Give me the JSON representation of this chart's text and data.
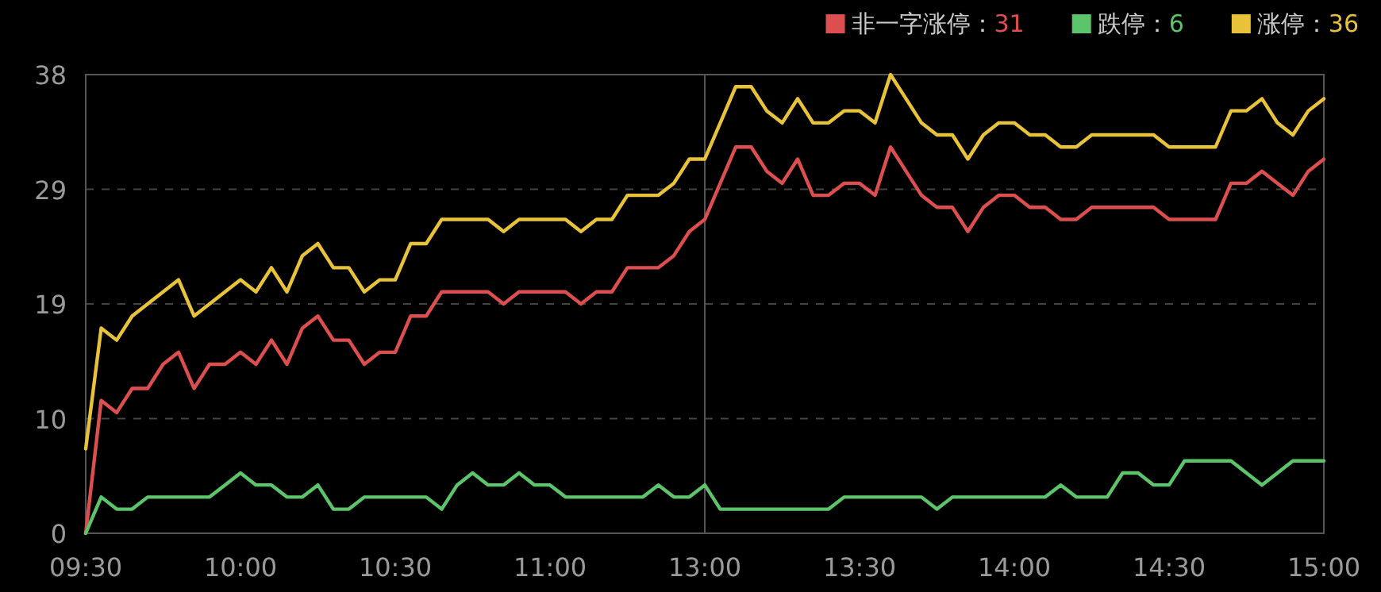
{
  "chart_data": {
    "type": "line",
    "categories": [
      "09:30",
      null,
      null,
      null,
      null,
      null,
      null,
      null,
      null,
      null,
      "10:00",
      null,
      null,
      null,
      null,
      null,
      null,
      null,
      null,
      null,
      "10:30",
      null,
      null,
      null,
      null,
      null,
      null,
      null,
      null,
      null,
      "11:00",
      null,
      null,
      null,
      null,
      null,
      null,
      null,
      null,
      null,
      "13:00",
      null,
      null,
      null,
      null,
      null,
      null,
      null,
      null,
      null,
      "13:30",
      null,
      null,
      null,
      null,
      null,
      null,
      null,
      null,
      null,
      "14:00",
      null,
      null,
      null,
      null,
      null,
      null,
      null,
      null,
      null,
      "14:30",
      null,
      null,
      null,
      null,
      null,
      null,
      null,
      null,
      null,
      "15:00"
    ],
    "series": [
      {
        "name": "非一字涨停：31",
        "color": "#dd4f4f",
        "values": [
          0,
          11,
          10,
          12,
          12,
          14,
          15,
          12,
          14,
          14,
          15,
          14,
          16,
          14,
          17,
          18,
          16,
          16,
          14,
          15,
          15,
          18,
          18,
          20,
          20,
          20,
          20,
          19,
          20,
          20,
          20,
          20,
          19,
          20,
          20,
          22,
          22,
          22,
          23,
          25,
          26,
          29,
          32,
          32,
          30,
          29,
          31,
          28,
          28,
          29,
          29,
          28,
          32,
          30,
          28,
          27,
          27,
          25,
          27,
          28,
          28,
          27,
          27,
          26,
          26,
          27,
          27,
          27,
          27,
          27,
          26,
          26,
          26,
          26,
          29,
          29,
          30,
          29,
          28,
          30,
          31
        ]
      },
      {
        "name": "跌停：6",
        "color": "#5cc46a",
        "values": [
          0,
          3,
          2,
          2,
          3,
          3,
          3,
          3,
          3,
          4,
          5,
          4,
          4,
          3,
          3,
          4,
          2,
          2,
          3,
          3,
          3,
          3,
          3,
          2,
          4,
          5,
          4,
          4,
          5,
          4,
          4,
          3,
          3,
          3,
          3,
          3,
          3,
          4,
          3,
          3,
          4,
          2,
          2,
          2,
          2,
          2,
          2,
          2,
          2,
          3,
          3,
          3,
          3,
          3,
          3,
          2,
          3,
          3,
          3,
          3,
          3,
          3,
          3,
          4,
          3,
          3,
          3,
          5,
          5,
          4,
          4,
          6,
          6,
          6,
          6,
          5,
          4,
          5,
          6,
          6,
          6
        ]
      },
      {
        "name": "涨停：36",
        "color": "#e8c33a",
        "values": [
          7,
          17,
          16,
          18,
          19,
          20,
          21,
          18,
          19,
          20,
          21,
          20,
          22,
          20,
          23,
          24,
          22,
          22,
          20,
          21,
          21,
          24,
          24,
          26,
          26,
          26,
          26,
          25,
          26,
          26,
          26,
          26,
          25,
          26,
          26,
          28,
          28,
          28,
          29,
          31,
          31,
          34,
          37,
          37,
          35,
          34,
          36,
          34,
          34,
          35,
          35,
          34,
          38,
          36,
          34,
          33,
          33,
          31,
          33,
          34,
          34,
          33,
          33,
          32,
          32,
          33,
          33,
          33,
          33,
          33,
          32,
          32,
          32,
          32,
          35,
          35,
          36,
          34,
          33,
          35,
          36
        ]
      }
    ],
    "ylim": [
      0,
      38
    ],
    "yticks": [
      0,
      {
        "value": 9.5,
        "label": "10"
      },
      19,
      {
        "value": 28.5,
        "label": "29"
      },
      38
    ],
    "grid": "y",
    "legend": "top right",
    "marker": "none",
    "line_style": "solid",
    "ref_lines": [
      {
        "axis": "x",
        "value": "13:00",
        "color": "#555555",
        "line_style": "solid"
      }
    ]
  }
}
